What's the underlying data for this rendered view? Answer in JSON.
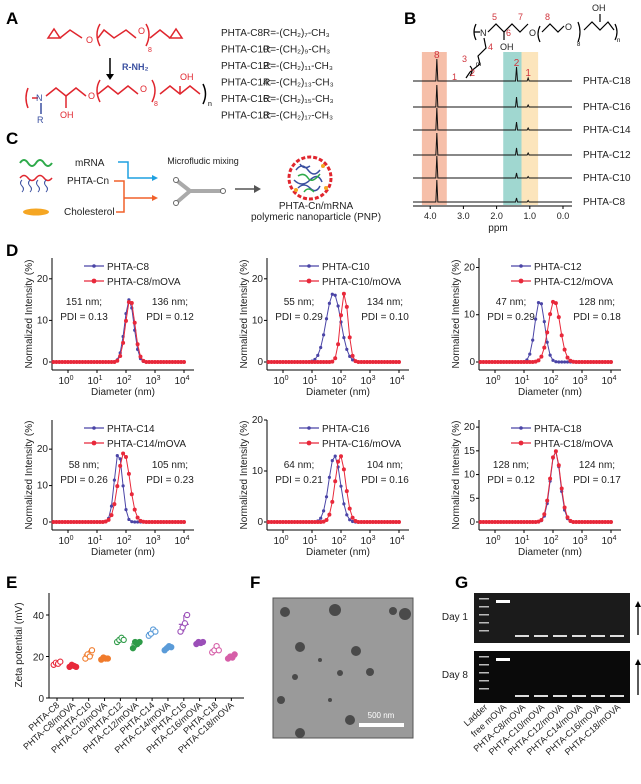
{
  "panel_labels": [
    "A",
    "B",
    "C",
    "D",
    "E",
    "F",
    "G"
  ],
  "panel_a": {
    "monomer_labels": [
      "O",
      "O",
      "8"
    ],
    "reagent": "R-NH₂",
    "polymer_labels": [
      "N",
      "R",
      "OH",
      "O",
      "O",
      "8",
      "OH",
      "n"
    ],
    "r_groups": [
      {
        "name": "PHTA-C8:",
        "formula": "R=-(CH₂)₇-CH₃"
      },
      {
        "name": "PHTA-C10:",
        "formula": "R=-(CH₂)₉-CH₃"
      },
      {
        "name": "PHTA-C12:",
        "formula": "R=-(CH₂)₁₁-CH₃"
      },
      {
        "name": "PHTA-C14:",
        "formula": "R=-(CH₂)₁₃-CH₃"
      },
      {
        "name": "PHTA-C16:",
        "formula": "R=-(CH₂)₁₅-CH₃"
      },
      {
        "name": "PHTA-C18:",
        "formula": "R=-(CH₂)₁₇-CH₃"
      }
    ],
    "colors": {
      "backbone": "#e0262e",
      "amine": "#3a4fa0"
    }
  },
  "panel_b": {
    "structure_labels": {
      "N": "N",
      "OH_side": "OH",
      "O1": "O",
      "O2": "O",
      "sub8": "8",
      "OH_end": "OH",
      "n": "n",
      "m": "m",
      "numbers": [
        "1",
        "2",
        "3",
        "4",
        "5",
        "6",
        "7",
        "8"
      ]
    },
    "peak_labels": [
      {
        "label": "8",
        "ppm": 3.8
      },
      {
        "label": "2",
        "ppm": 1.4
      },
      {
        "label": "1",
        "ppm": 1.05
      }
    ],
    "bands": [
      {
        "from": 4.25,
        "to": 3.5,
        "color": "#f4b49a"
      },
      {
        "from": 1.8,
        "to": 1.25,
        "color": "#8fd0c8"
      },
      {
        "from": 1.25,
        "to": 0.75,
        "color": "#fbe0b0"
      }
    ],
    "spectra": [
      {
        "label": "PHTA-C18",
        "peak8": 22,
        "peak2": 14,
        "peak1": 3
      },
      {
        "label": "PHTA-C16",
        "peak8": 22,
        "peak2": 10,
        "peak1": 2
      },
      {
        "label": "PHTA-C14",
        "peak8": 22,
        "peak2": 8,
        "peak1": 2
      },
      {
        "label": "PHTA-C12",
        "peak8": 22,
        "peak2": 7,
        "peak1": 2
      },
      {
        "label": "PHTA-C10",
        "peak8": 22,
        "peak2": 5,
        "peak1": 1.5
      },
      {
        "label": "PHTA-C8",
        "peak8": 22,
        "peak2": 4,
        "peak1": 1.5
      }
    ],
    "x_ticks": [
      "4.0",
      "3.0",
      "2.0",
      "1.0",
      "0.0"
    ],
    "x_label": "ppm"
  },
  "panel_c": {
    "components": [
      "mRNA",
      "PHTA-Cn",
      "Cholesterol"
    ],
    "process": "Microfludic mixing",
    "product_line1": "PHTA-Cn/mRNA",
    "product_line2": "polymeric nanoparticle (PNP)"
  },
  "chart_data": [
    {
      "type": "line",
      "panel": "D",
      "xlabel": "Diameter (nm)",
      "ylabel": "Normalized Intensity (%)",
      "x_scale": "log",
      "x_tick_base": "10",
      "x_tick_exponents": [
        "0",
        "1",
        "2",
        "3",
        "4"
      ],
      "series_colors": [
        "#4a44a6",
        "#e8283a"
      ],
      "subplots": [
        {
          "ylim": [
            0,
            25
          ],
          "y_ticks": [
            "0",
            "10",
            "20"
          ],
          "series": [
            {
              "name": "PHTA-C8",
              "peak_diameter_nm": 130,
              "peak_intensity": 15,
              "width_decades": 0.16
            },
            {
              "name": "PHTA-C8/mOVA",
              "peak_diameter_nm": 140,
              "peak_intensity": 15,
              "width_decades": 0.16
            }
          ],
          "annotations": [
            {
              "line1": "151 nm;",
              "line2": "PDI = 0.13"
            },
            {
              "line1": "136 nm;",
              "line2": "PDI = 0.12"
            }
          ]
        },
        {
          "ylim": [
            0,
            25
          ],
          "y_ticks": [
            "0",
            "10",
            "20"
          ],
          "series": [
            {
              "name": "PHTA-C10",
              "peak_diameter_nm": 55,
              "peak_intensity": 16.5,
              "width_decades": 0.25
            },
            {
              "name": "PHTA-C10/mOVA",
              "peak_diameter_nm": 130,
              "peak_intensity": 16.5,
              "width_decades": 0.13
            }
          ],
          "annotations": [
            {
              "line1": "55 nm;",
              "line2": "PDI = 0.29"
            },
            {
              "line1": "134 nm;",
              "line2": "PDI = 0.10"
            }
          ]
        },
        {
          "ylim": [
            0,
            22
          ],
          "y_ticks": [
            "0",
            "10",
            "20"
          ],
          "series": [
            {
              "name": "PHTA-C12",
              "peak_diameter_nm": 35,
              "peak_intensity": 13,
              "width_decades": 0.17
            },
            {
              "name": "PHTA-C12/mOVA",
              "peak_diameter_nm": 110,
              "peak_intensity": 13,
              "width_decades": 0.2
            }
          ],
          "annotations": [
            {
              "line1": "47 nm;",
              "line2": "PDI = 0.29"
            },
            {
              "line1": "128 nm;",
              "line2": "PDI = 0.18"
            }
          ]
        },
        {
          "ylim": [
            0,
            28
          ],
          "y_ticks": [
            "0",
            "10",
            "20"
          ],
          "series": [
            {
              "name": "PHTA-C14",
              "peak_diameter_nm": 55,
              "peak_intensity": 19,
              "width_decades": 0.14
            },
            {
              "name": "PHTA-C14/mOVA",
              "peak_diameter_nm": 85,
              "peak_intensity": 19,
              "width_decades": 0.2
            }
          ],
          "annotations": [
            {
              "line1": "58 nm;",
              "line2": "PDI = 0.26"
            },
            {
              "line1": "105 nm;",
              "line2": "PDI = 0.23"
            }
          ]
        },
        {
          "ylim": [
            0,
            20
          ],
          "y_ticks": [
            "0",
            "10",
            "20"
          ],
          "series": [
            {
              "name": "PHTA-C16",
              "peak_diameter_nm": 60,
              "peak_intensity": 13,
              "width_decades": 0.2
            },
            {
              "name": "PHTA-C16/mOVA",
              "peak_diameter_nm": 95,
              "peak_intensity": 13,
              "width_decades": 0.18
            }
          ],
          "annotations": [
            {
              "line1": "64 nm;",
              "line2": "PDI = 0.21"
            },
            {
              "line1": "104 nm;",
              "line2": "PDI = 0.16"
            }
          ]
        },
        {
          "ylim": [
            0,
            21.5
          ],
          "y_ticks": [
            "0",
            "5",
            "10",
            "15",
            "20"
          ],
          "series": [
            {
              "name": "PHTA-C18",
              "peak_diameter_nm": 120,
              "peak_intensity": 15,
              "width_decades": 0.17
            },
            {
              "name": "PHTA-C18/mOVA",
              "peak_diameter_nm": 120,
              "peak_intensity": 15,
              "width_decades": 0.18
            }
          ],
          "annotations": [
            {
              "line1": "128 nm;",
              "line2": "PDI = 0.12"
            },
            {
              "line1": "124 nm;",
              "line2": "PDI = 0.17"
            }
          ]
        }
      ]
    },
    {
      "type": "scatter",
      "panel": "E",
      "ylabel": "Zeta potential (mV)",
      "ylim": [
        0,
        50
      ],
      "y_ticks": [
        "0",
        "20",
        "40"
      ],
      "categories": [
        "PHTA-C8",
        "PHTA-C8/mOVA",
        "PHTA-C10",
        "PHTA-C10/mOVA",
        "PHTA-C12",
        "PHTA-C12/mOVA",
        "PHTA-C14",
        "PHTA-C14/mOVA",
        "PHTA-C16",
        "PHTA-C16/mOVA",
        "PHTA-C18",
        "PHTA-C18/mOVA"
      ],
      "colors": [
        "#e8283a",
        "#e8283a",
        "#f07b2c",
        "#f07b2c",
        "#2e9b48",
        "#2e9b48",
        "#5a9bd8",
        "#5a9bd8",
        "#9b4fb8",
        "#9b4fb8",
        "#d65fa8",
        "#d65fa8"
      ],
      "filled": [
        false,
        true,
        false,
        true,
        false,
        true,
        false,
        true,
        false,
        true,
        false,
        true
      ],
      "values": [
        [
          16,
          17,
          16.5,
          17.5
        ],
        [
          15,
          16,
          15.5,
          15
        ],
        [
          19,
          21,
          20,
          23
        ],
        [
          18.5,
          19.5,
          19,
          19
        ],
        [
          27,
          28,
          29,
          28
        ],
        [
          24,
          27,
          26,
          27
        ],
        [
          30,
          31,
          33,
          32
        ],
        [
          23,
          24,
          25,
          24.5
        ],
        [
          32,
          34,
          36,
          40
        ],
        [
          26,
          27,
          26.5,
          27
        ],
        [
          22,
          23,
          25,
          23
        ],
        [
          19,
          20,
          19.5,
          21
        ]
      ]
    }
  ],
  "panel_f": {
    "scale_bar": "500 nm"
  },
  "panel_g": {
    "gels": [
      "Day 1",
      "Day 8"
    ],
    "lanes": [
      "Ladder",
      "free mOVA",
      "PHTA-C8/mOVA",
      "PHTA-C10/mOVA",
      "PHTA-C12/mOVA",
      "PHTA-C14/mOVA",
      "PHTA-C16/mOVA",
      "PHTA-C18/mOVA"
    ]
  }
}
